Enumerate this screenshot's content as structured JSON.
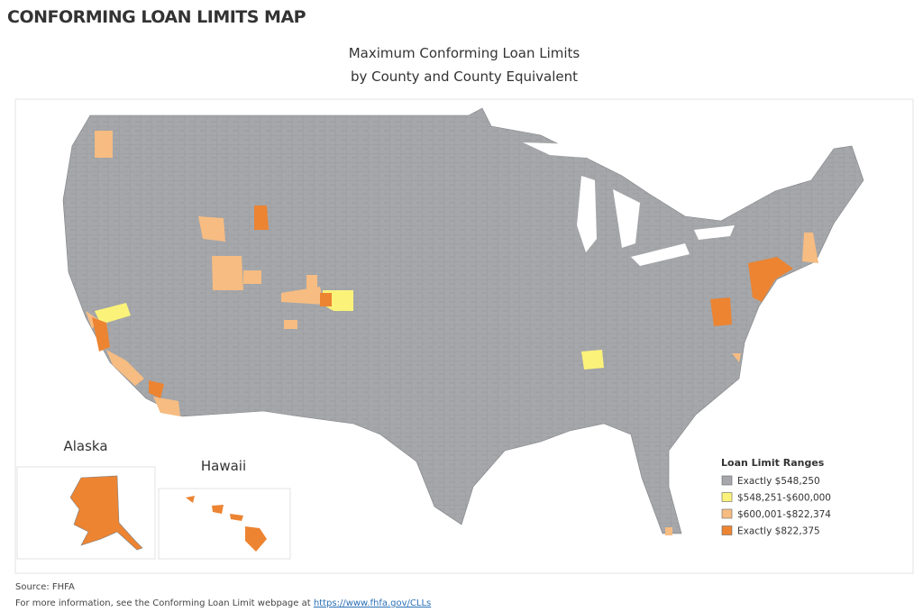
{
  "header": {
    "title": "CONFORMING LOAN LIMITS MAP"
  },
  "map": {
    "title": [
      "Maximum Conforming Loan Limits",
      "by County and County Equivalent"
    ],
    "insets": [
      "Alaska",
      "Hawaii"
    ],
    "legend": {
      "title": "Loan Limit Ranges",
      "items": [
        {
          "label": "Exactly $548,250",
          "color": "#a5a7aa"
        },
        {
          "label": "$548,251-$600,000",
          "color": "#fbf27a"
        },
        {
          "label": "$600,001-$822,374",
          "color": "#f6bc82"
        },
        {
          "label": "Exactly $822,375",
          "color": "#ec8432"
        }
      ]
    }
  },
  "footer": {
    "source": "Source: FHFA",
    "note": "For more information, see the Conforming Loan Limit webpage at",
    "link": "https://www.fhfa.gov/CLLs"
  }
}
